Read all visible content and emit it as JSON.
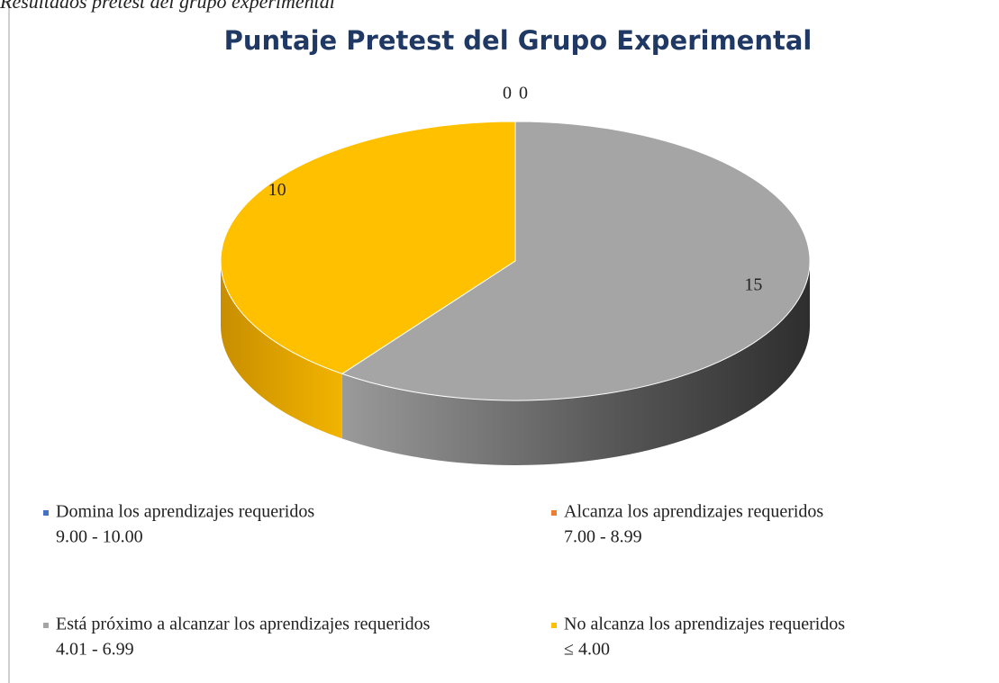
{
  "caption": "Resultados pretest del grupo experimental",
  "chart_data": {
    "type": "pie",
    "title": "Puntaje Pretest del Grupo Experimental",
    "categories": [
      "Domina los aprendizajes requeridos",
      "Alcanza los aprendizajes requeridos",
      "Está próximo a alcanzar los aprendizajes requeridos",
      "No alcanza los aprendizajes requeridos"
    ],
    "category_ranges": [
      "9.00 - 10.00",
      "7.00 - 8.99",
      "4.01 - 6.99",
      "≤ 4.00"
    ],
    "values": [
      0,
      0,
      15,
      10
    ],
    "colors": [
      "#4472c4",
      "#ed7d31",
      "#a5a5a5",
      "#ffc000"
    ],
    "legend": "bottom"
  }
}
